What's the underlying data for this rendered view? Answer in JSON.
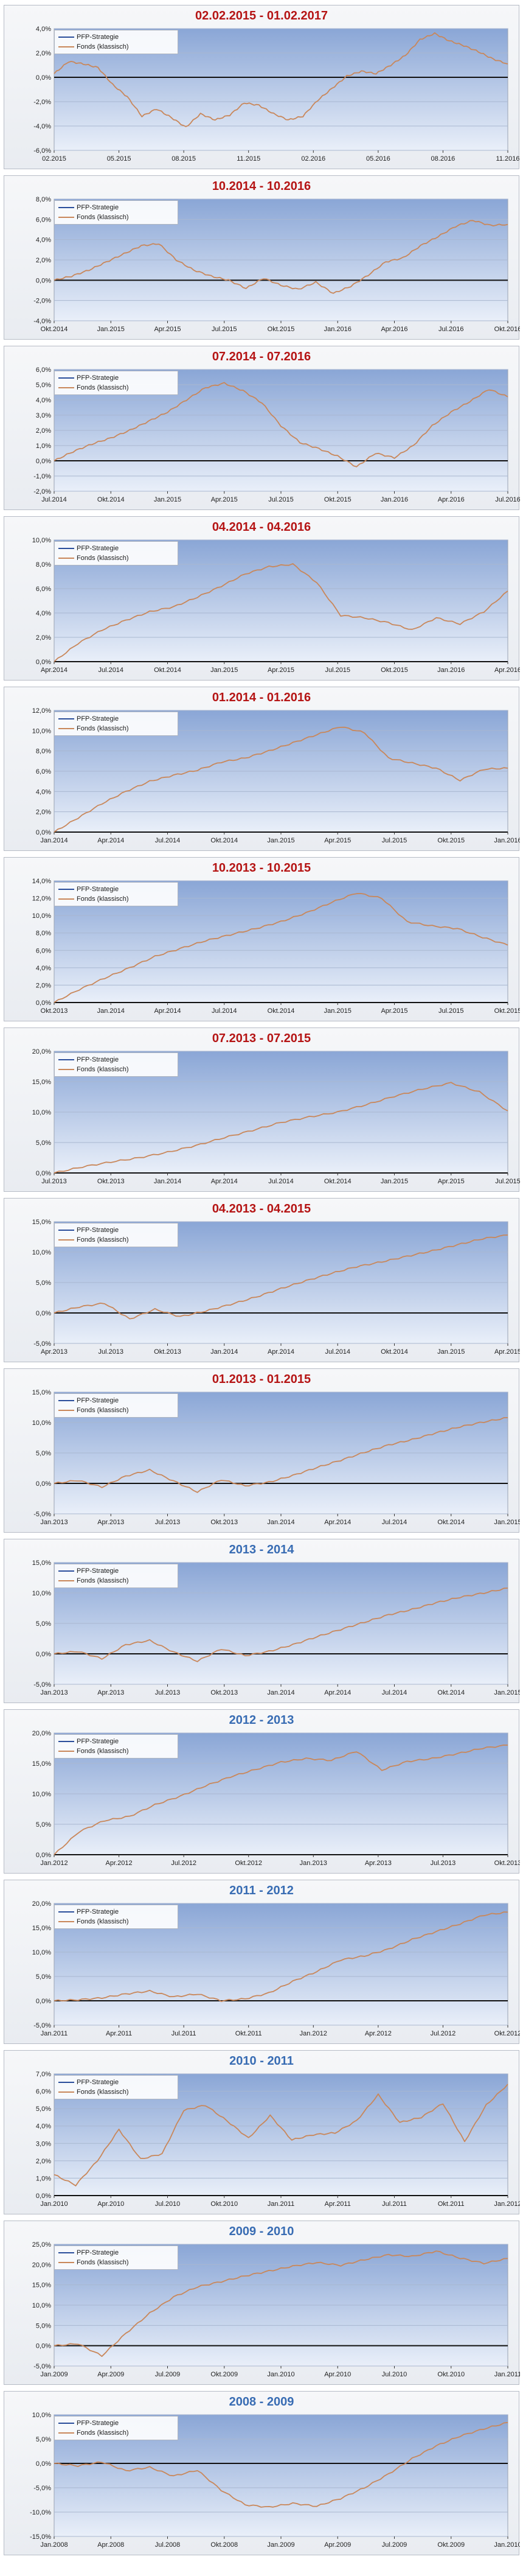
{
  "colors": {
    "strategy": "#2b4e9b",
    "fund": "#c9875a",
    "title_red": "#b51414",
    "title_blue": "#386cb3"
  },
  "charts": [
    {
      "title": "02.02.2015 - 01.02.2017",
      "title_color": "#b51414",
      "y_ticks": [
        "4,0%",
        "2,0%",
        "0,0%",
        "-2,0%",
        "-4,0%",
        "-6,0%"
      ],
      "y_values": [
        4,
        2,
        0,
        -2,
        -4,
        -6
      ],
      "x_ticks": [
        "02.2015",
        "05.2015",
        "08.2015",
        "11.2015",
        "02.2016",
        "05.2016",
        "08.2016",
        "11.2016"
      ],
      "series_points": [
        0.3,
        1.3,
        1.1,
        0.8,
        -0.6,
        -1.6,
        -3.2,
        -2.6,
        -3.3,
        -4.1,
        -3.0,
        -3.5,
        -3.1,
        -2.1,
        -2.3,
        -3.0,
        -3.5,
        -3.2,
        -1.9,
        -0.9,
        0.1,
        0.5,
        0.3,
        1.0,
        1.8,
        3.1,
        3.6,
        3.0,
        2.6,
        2.1,
        1.5,
        1.1
      ]
    },
    {
      "title": "10.2014 - 10.2016",
      "title_color": "#b51414",
      "y_ticks": [
        "8,0%",
        "6,0%",
        "4,0%",
        "2,0%",
        "0,0%",
        "-2,0%",
        "-4,0%"
      ],
      "y_values": [
        8,
        6,
        4,
        2,
        0,
        -2,
        -4
      ],
      "x_ticks": [
        "Okt.2014",
        "Jan.2015",
        "Apr.2015",
        "Jul.2015",
        "Okt.2015",
        "Jan.2016",
        "Apr.2016",
        "Jul.2016",
        "Okt.2016"
      ],
      "series_points": [
        0.0,
        0.4,
        1.0,
        1.8,
        2.6,
        3.4,
        3.6,
        2.0,
        1.0,
        0.4,
        0.0,
        -0.8,
        0.2,
        -0.5,
        -0.9,
        -0.2,
        -1.3,
        -0.6,
        0.5,
        1.8,
        2.2,
        3.4,
        4.3,
        5.3,
        5.9,
        5.4,
        5.5
      ]
    },
    {
      "title": "07.2014 - 07.2016",
      "title_color": "#b51414",
      "y_ticks": [
        "6,0%",
        "5,0%",
        "4,0%",
        "3,0%",
        "2,0%",
        "1,0%",
        "0,0%",
        "-1,0%",
        "-2,0%"
      ],
      "y_values": [
        6,
        5,
        4,
        3,
        2,
        1,
        0,
        -1,
        -2
      ],
      "x_ticks": [
        "Jul.2014",
        "Okt.2014",
        "Jan.2015",
        "Apr.2015",
        "Jul.2015",
        "Okt.2015",
        "Jan.2016",
        "Apr.2016",
        "Jul.2016"
      ],
      "series_points": [
        0.0,
        0.6,
        1.1,
        1.5,
        2.0,
        2.6,
        3.2,
        4.0,
        4.8,
        5.1,
        4.6,
        3.8,
        2.3,
        1.2,
        0.8,
        0.3,
        -0.4,
        0.5,
        0.2,
        1.0,
        2.3,
        3.2,
        3.9,
        4.7,
        4.2
      ]
    },
    {
      "title": "04.2014 - 04.2016",
      "title_color": "#b51414",
      "y_ticks": [
        "10,0%",
        "8,0%",
        "6,0%",
        "4,0%",
        "2,0%",
        "0,0%"
      ],
      "y_values": [
        10,
        8,
        6,
        4,
        2,
        0
      ],
      "x_ticks": [
        "Apr.2014",
        "Jul.2014",
        "Okt.2014",
        "Jan.2015",
        "Apr.2015",
        "Jul.2015",
        "Okt.2015",
        "Jan.2016",
        "Apr.2016"
      ],
      "series_points": [
        0.0,
        1.5,
        2.6,
        3.4,
        4.1,
        4.5,
        5.3,
        6.2,
        7.2,
        7.8,
        8.0,
        6.5,
        3.8,
        3.6,
        3.2,
        2.6,
        3.6,
        3.1,
        4.1,
        5.8
      ]
    },
    {
      "title": "01.2014 - 01.2016",
      "title_color": "#b51414",
      "y_ticks": [
        "12,0%",
        "10,0%",
        "8,0%",
        "6,0%",
        "4,0%",
        "2,0%",
        "0,0%"
      ],
      "y_values": [
        12,
        10,
        8,
        6,
        4,
        2,
        0
      ],
      "x_ticks": [
        "Jan.2014",
        "Apr.2014",
        "Jul.2014",
        "Okt.2014",
        "Jan.2015",
        "Apr.2015",
        "Jul.2015",
        "Okt.2015",
        "Jan.2016"
      ],
      "series_points": [
        0.0,
        1.4,
        2.8,
        4.0,
        5.0,
        5.6,
        6.1,
        6.9,
        7.3,
        8.0,
        8.8,
        9.6,
        10.4,
        9.8,
        7.3,
        6.8,
        6.3,
        5.1,
        6.2,
        6.3
      ]
    },
    {
      "title": "10.2013 - 10.2015",
      "title_color": "#b51414",
      "y_ticks": [
        "14,0%",
        "12,0%",
        "10,0%",
        "8,0%",
        "6,0%",
        "4,0%",
        "2,0%",
        "0,0%"
      ],
      "y_values": [
        14,
        12,
        10,
        8,
        6,
        4,
        2,
        0
      ],
      "x_ticks": [
        "Okt.2013",
        "Jan.2014",
        "Apr.2014",
        "Jul.2014",
        "Okt.2014",
        "Jan.2015",
        "Apr.2015",
        "Jul.2015",
        "Okt.2015"
      ],
      "series_points": [
        0.0,
        1.5,
        2.8,
        4.0,
        5.3,
        6.2,
        7.1,
        7.8,
        8.5,
        9.3,
        10.3,
        11.5,
        12.6,
        12.0,
        9.3,
        8.8,
        8.5,
        7.5,
        6.6
      ]
    },
    {
      "title": "07.2013 - 07.2015",
      "title_color": "#b51414",
      "y_ticks": [
        "20,0%",
        "15,0%",
        "10,0%",
        "5,0%",
        "0,0%"
      ],
      "y_values": [
        20,
        15,
        10,
        5,
        0
      ],
      "x_ticks": [
        "Jul.2013",
        "Okt.2013",
        "Jan.2014",
        "Apr.2014",
        "Jul.2014",
        "Okt.2014",
        "Jan.2015",
        "Apr.2015",
        "Jul.2015"
      ],
      "series_points": [
        0.0,
        1.0,
        1.8,
        2.5,
        3.4,
        4.5,
        5.8,
        7.0,
        8.3,
        9.2,
        10.0,
        11.2,
        12.6,
        13.8,
        14.8,
        13.3,
        10.2
      ]
    },
    {
      "title": "04.2013 - 04.2015",
      "title_color": "#b51414",
      "y_ticks": [
        "15,0%",
        "10,0%",
        "5,0%",
        "0,0%",
        "-5,0%"
      ],
      "y_values": [
        15,
        10,
        5,
        0,
        -5
      ],
      "x_ticks": [
        "Apr.2013",
        "Jul.2013",
        "Okt.2013",
        "Jan.2014",
        "Apr.2014",
        "Jul.2014",
        "Okt.2014",
        "Jan.2015",
        "Apr.2015"
      ],
      "series_points": [
        0.0,
        1.0,
        1.6,
        -1.0,
        0.6,
        -0.6,
        0.3,
        1.4,
        2.6,
        4.0,
        5.3,
        6.5,
        7.6,
        8.4,
        9.3,
        10.2,
        11.2,
        12.2,
        12.8
      ]
    },
    {
      "title": "01.2013 - 01.2015",
      "title_color": "#b51414",
      "y_ticks": [
        "15,0%",
        "10,0%",
        "5,0%",
        "0,0%",
        "-5,0%"
      ],
      "y_values": [
        15,
        10,
        5,
        0,
        -5
      ],
      "x_ticks": [
        "Jan.2013",
        "Apr.2013",
        "Jul.2013",
        "Okt.2013",
        "Jan.2014",
        "Apr.2014",
        "Jul.2014",
        "Okt.2014",
        "Jan.2015"
      ],
      "series_points": [
        0.0,
        0.5,
        -0.6,
        1.2,
        2.2,
        0.4,
        -1.4,
        0.6,
        -0.4,
        0.2,
        1.3,
        2.6,
        3.8,
        5.1,
        6.3,
        7.2,
        8.3,
        9.3,
        10.1,
        10.8
      ]
    },
    {
      "title": "2013 - 2014",
      "title_color": "#386cb3",
      "y_ticks": [
        "15,0%",
        "10,0%",
        "5,0%",
        "0,0%",
        "-5,0%"
      ],
      "y_values": [
        15,
        10,
        5,
        0,
        -5
      ],
      "x_ticks": [
        "Jan.2013",
        "Apr.2013",
        "Jul.2013",
        "Okt.2013",
        "Jan.2014",
        "Apr.2014",
        "Jul.2014",
        "Okt.2014",
        "Jan.2015"
      ],
      "series_points": [
        0.0,
        0.4,
        -0.8,
        1.5,
        2.2,
        0.3,
        -1.2,
        0.8,
        -0.3,
        0.4,
        1.5,
        2.8,
        4.0,
        5.2,
        6.4,
        7.3,
        8.4,
        9.3,
        10.0,
        10.8
      ]
    },
    {
      "title": "2012 - 2013",
      "title_color": "#386cb3",
      "y_ticks": [
        "20,0%",
        "15,0%",
        "10,0%",
        "5,0%",
        "0,0%"
      ],
      "y_values": [
        20,
        15,
        10,
        5,
        0
      ],
      "x_ticks": [
        "Jan.2012",
        "Apr.2012",
        "Jul.2012",
        "Okt.2012",
        "Jan.2013",
        "Apr.2013",
        "Jul.2013",
        "Okt.2013"
      ],
      "series_points": [
        0.0,
        3.8,
        5.6,
        6.3,
        8.2,
        9.6,
        11.3,
        12.8,
        14.0,
        15.2,
        15.8,
        15.5,
        17.0,
        13.9,
        15.3,
        15.8,
        16.6,
        17.5,
        18.0
      ]
    },
    {
      "title": "2011 - 2012",
      "title_color": "#386cb3",
      "y_ticks": [
        "20,0%",
        "15,0%",
        "10,0%",
        "5,0%",
        "0,0%",
        "-5,0%"
      ],
      "y_values": [
        20,
        15,
        10,
        5,
        0,
        -5
      ],
      "x_ticks": [
        "Jan.2011",
        "Apr.2011",
        "Jul.2011",
        "Okt.2011",
        "Jan.2012",
        "Apr.2012",
        "Jul.2012",
        "Okt.2012"
      ],
      "series_points": [
        0.0,
        0.2,
        0.6,
        1.4,
        2.0,
        0.8,
        1.4,
        0.0,
        0.4,
        1.6,
        4.0,
        6.0,
        8.4,
        9.2,
        10.6,
        12.6,
        14.2,
        15.8,
        17.6,
        18.2
      ]
    },
    {
      "title": "2010 - 2011",
      "title_color": "#386cb3",
      "y_ticks": [
        "7,0%",
        "6,0%",
        "5,0%",
        "4,0%",
        "3,0%",
        "2,0%",
        "1,0%",
        "0,0%"
      ],
      "y_values": [
        7,
        6,
        5,
        4,
        3,
        2,
        1,
        0
      ],
      "x_ticks": [
        "Jan.2010",
        "Apr.2010",
        "Jul.2010",
        "Okt.2010",
        "Jan.2011",
        "Apr.2011",
        "Jul.2011",
        "Okt.2011",
        "Jan.2012"
      ],
      "series_points": [
        1.2,
        0.6,
        2.0,
        3.8,
        2.1,
        2.4,
        4.9,
        5.2,
        4.3,
        3.3,
        4.6,
        3.2,
        3.5,
        3.6,
        4.3,
        5.8,
        4.2,
        4.5,
        5.3,
        3.1,
        5.2,
        6.4
      ]
    },
    {
      "title": "2009 - 2010",
      "title_color": "#386cb3",
      "y_ticks": [
        "25,0%",
        "20,0%",
        "15,0%",
        "10,0%",
        "5,0%",
        "0,0%",
        "-5,0%"
      ],
      "y_values": [
        25,
        20,
        15,
        10,
        5,
        0,
        -5
      ],
      "x_ticks": [
        "Jan.2009",
        "Apr.2009",
        "Jul.2009",
        "Okt.2009",
        "Jan.2010",
        "Apr.2010",
        "Jul.2010",
        "Okt.2010",
        "Jan.2011"
      ],
      "series_points": [
        0.0,
        0.5,
        -2.5,
        3.0,
        8.0,
        12.0,
        14.5,
        15.8,
        17.2,
        18.4,
        19.6,
        20.5,
        19.8,
        21.2,
        22.4,
        22.0,
        23.3,
        21.6,
        20.3,
        21.5
      ]
    },
    {
      "title": "2008 - 2009",
      "title_color": "#386cb3",
      "y_ticks": [
        "10,0%",
        "5,0%",
        "0,0%",
        "-5,0%",
        "-10,0%",
        "-15,0%"
      ],
      "y_values": [
        10,
        5,
        0,
        -5,
        -10,
        -15
      ],
      "x_ticks": [
        "Jan.2008",
        "Apr.2008",
        "Jul.2008",
        "Okt.2008",
        "Jan.2009",
        "Apr.2009",
        "Jul.2009",
        "Okt.2009",
        "Jan.2010"
      ],
      "series_points": [
        0.0,
        -0.5,
        0.3,
        -1.5,
        -0.8,
        -2.6,
        -1.4,
        -5.5,
        -8.5,
        -9.0,
        -8.2,
        -8.8,
        -7.2,
        -5.0,
        -2.2,
        1.0,
        3.6,
        5.6,
        7.1,
        8.4
      ]
    }
  ],
  "legend": {
    "strategy": "PFP-Strategie",
    "fund": "Fonds (klassisch)"
  }
}
